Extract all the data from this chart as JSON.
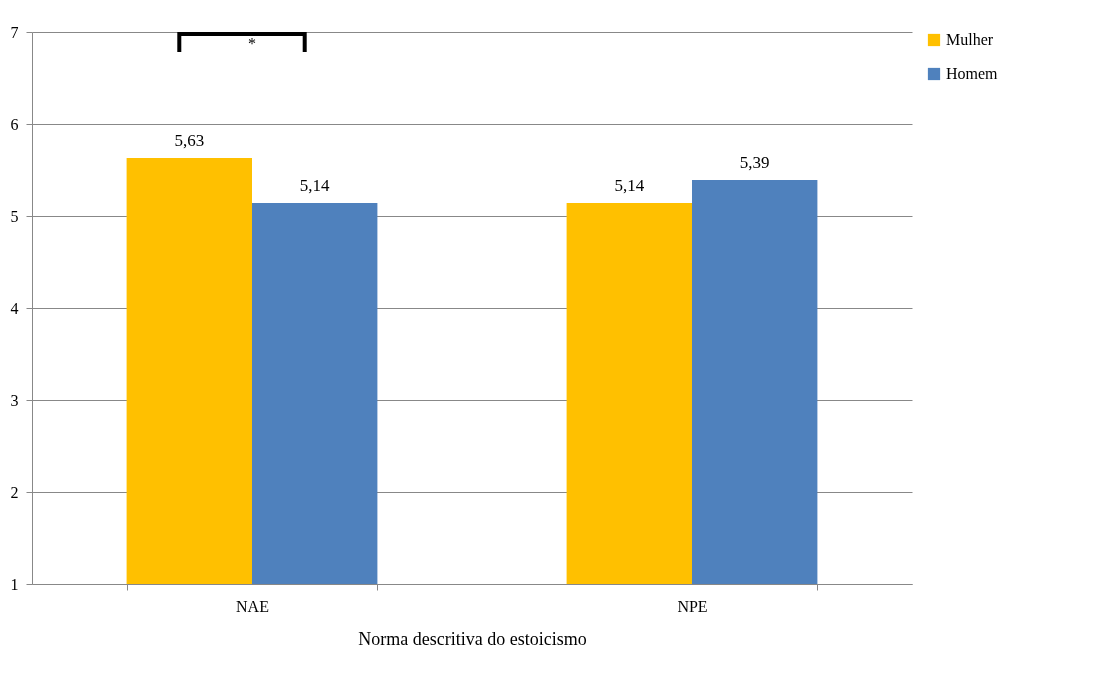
{
  "chart_data": {
    "type": "bar",
    "xlabel": "Norma descritiva do estoicismo",
    "categories": [
      "NAE",
      "NPE"
    ],
    "series": [
      {
        "name": "Mulher",
        "color": "#ffc000",
        "values": [
          5.63,
          5.14
        ],
        "value_labels": [
          "5,63",
          "5,14"
        ]
      },
      {
        "name": "Homem",
        "color": "#4f81bd",
        "values": [
          5.14,
          5.39
        ],
        "value_labels": [
          "5,14",
          "5,39"
        ]
      }
    ],
    "ylim": [
      1,
      7
    ],
    "yticks": [
      1,
      2,
      3,
      4,
      5,
      6,
      7
    ],
    "grid": "y",
    "legend": "right",
    "annotations": [
      "*"
    ]
  }
}
